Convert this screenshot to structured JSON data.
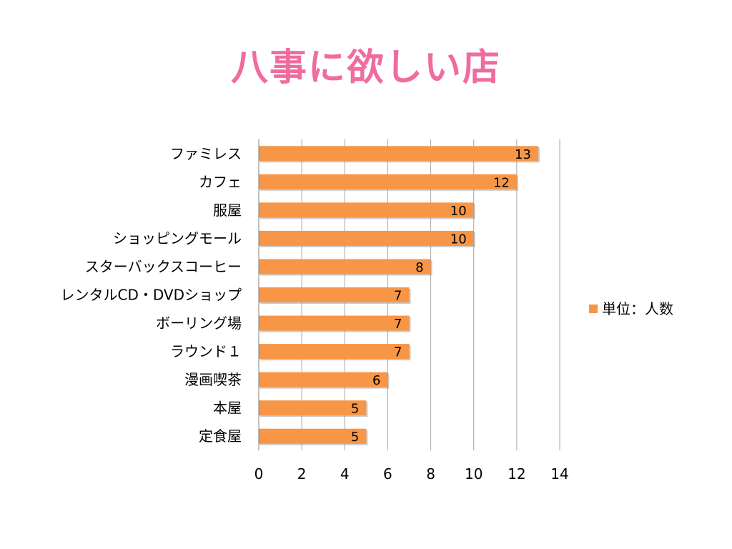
{
  "slide": {
    "title": "八事に欲しい店"
  },
  "chart_data": {
    "type": "bar",
    "orientation": "horizontal",
    "categories": [
      "ファミレス",
      "カフェ",
      "服屋",
      "ショッピングモール",
      "スターバックスコーヒー",
      "レンタルCD・DVDショップ",
      "ボーリング場",
      "ラウンド１",
      "漫画喫茶",
      "本屋",
      "定食屋"
    ],
    "series": [
      {
        "name": "単位：人数",
        "values": [
          13,
          12,
          10,
          10,
          8,
          7,
          7,
          7,
          6,
          5,
          5
        ],
        "color": "#f79646"
      }
    ],
    "xlim": [
      0,
      14
    ],
    "x_ticks": [
      0,
      2,
      4,
      6,
      8,
      10,
      12,
      14
    ],
    "grid": true,
    "data_labels": true,
    "legend_placement": "right"
  }
}
